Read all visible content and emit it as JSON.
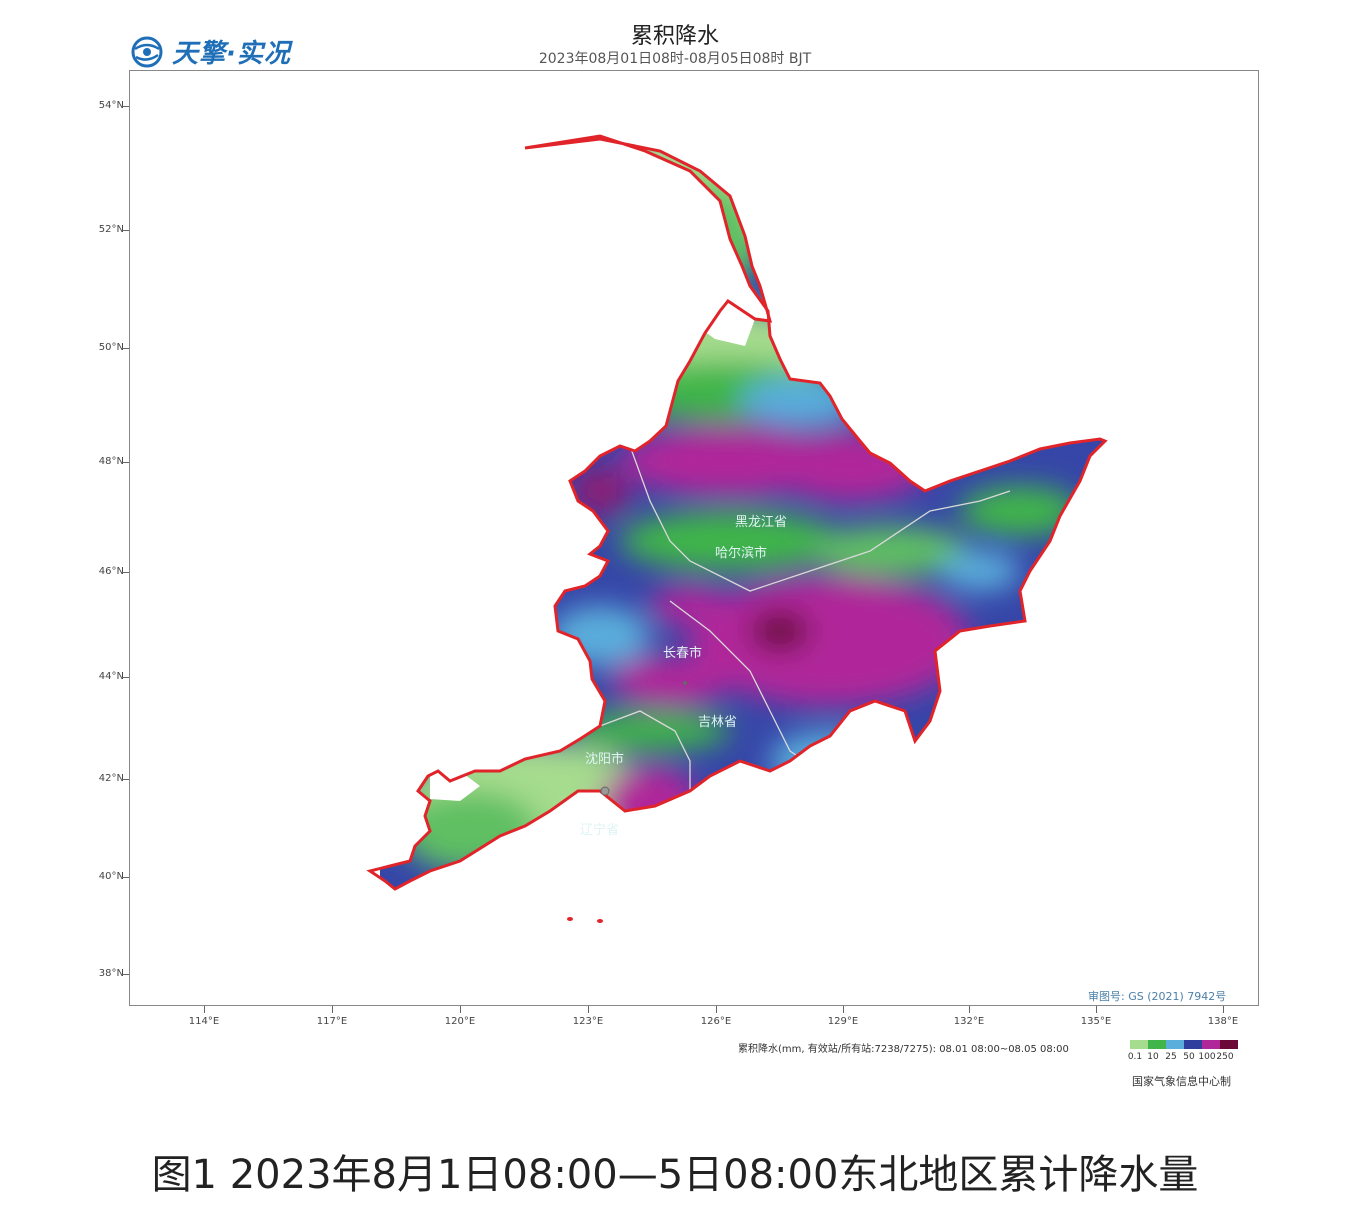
{
  "logo": {
    "text": "天擎·实况",
    "icon": "globe-icon"
  },
  "title": "累积降水",
  "subtitle": "2023年08月01日08时-08月05日08时 BJT",
  "latitudes": [
    "54°N",
    "52°N",
    "50°N",
    "48°N",
    "46°N",
    "44°N",
    "42°N",
    "40°N",
    "38°N"
  ],
  "longitudes": [
    "114°E",
    "117°E",
    "120°E",
    "123°E",
    "126°E",
    "129°E",
    "132°E",
    "135°E",
    "138°E"
  ],
  "map_labels": {
    "heilongjiang": "黑龙江省",
    "harbin": "哈尔滨市",
    "changchun": "长春市",
    "jilin": "吉林省",
    "shenyang": "沈阳市",
    "liaoning": "辽宁省"
  },
  "approval": "审图号: GS (2021) 7942号",
  "legend": {
    "title": "累积降水(mm, 有效站/所有站:7238/7275): 08.01 08:00~08.05 08:00",
    "labels": [
      "0.1",
      "10",
      "25",
      "50",
      "100",
      "250"
    ],
    "colors": [
      "#a6dc8e",
      "#3fb54a",
      "#5aaedb",
      "#2f3f9e",
      "#b0279a",
      "#6b0838"
    ]
  },
  "producer": "国家气象信息中心制",
  "caption": "图1  2023年8月1日08:00—5日08:00东北地区累计降水量"
}
